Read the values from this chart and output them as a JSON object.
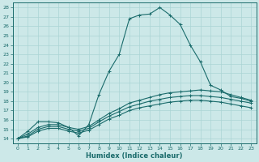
{
  "xlabel": "Humidex (Indice chaleur)",
  "xlim": [
    -0.5,
    23.5
  ],
  "ylim": [
    13.5,
    28.5
  ],
  "xticks": [
    0,
    1,
    2,
    3,
    4,
    5,
    6,
    7,
    8,
    9,
    10,
    11,
    12,
    13,
    14,
    15,
    16,
    17,
    18,
    19,
    20,
    21,
    22,
    23
  ],
  "yticks": [
    14,
    15,
    16,
    17,
    18,
    19,
    20,
    21,
    22,
    23,
    24,
    25,
    26,
    27,
    28
  ],
  "bg_color": "#cce8e8",
  "line_color": "#1a6b6b",
  "grid_color": "#aad4d4",
  "line1_y": [
    14.0,
    14.8,
    15.8,
    15.8,
    15.7,
    15.2,
    14.3,
    15.5,
    18.7,
    21.2,
    23.0,
    26.8,
    27.2,
    27.3,
    28.0,
    27.2,
    26.2,
    24.0,
    22.2,
    19.7,
    19.2,
    18.5,
    18.3,
    18.0
  ],
  "line2_y": [
    14.0,
    14.5,
    15.2,
    15.5,
    15.5,
    15.2,
    15.0,
    15.3,
    16.0,
    16.7,
    17.2,
    17.8,
    18.1,
    18.4,
    18.7,
    18.9,
    19.0,
    19.1,
    19.2,
    19.1,
    19.0,
    18.7,
    18.4,
    18.1
  ],
  "line3_y": [
    14.0,
    14.3,
    15.0,
    15.3,
    15.3,
    15.0,
    14.8,
    15.1,
    15.8,
    16.4,
    16.9,
    17.4,
    17.7,
    18.0,
    18.2,
    18.4,
    18.5,
    18.6,
    18.6,
    18.5,
    18.4,
    18.2,
    18.0,
    17.8
  ],
  "line4_y": [
    14.0,
    14.2,
    14.8,
    15.1,
    15.1,
    14.8,
    14.6,
    14.9,
    15.5,
    16.1,
    16.5,
    17.0,
    17.3,
    17.5,
    17.7,
    17.9,
    18.0,
    18.1,
    18.1,
    18.0,
    17.9,
    17.7,
    17.5,
    17.3
  ]
}
